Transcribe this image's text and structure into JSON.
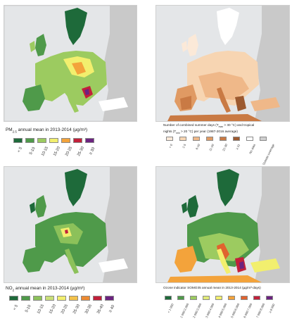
{
  "panels": [
    {
      "id": "pm25",
      "title_prefix": "PM",
      "title_sub": "2.5",
      "title_rest": " annual mean in 2013-2014 (µg/m³)",
      "legend": [
        {
          "label": "< 5",
          "color": "#1e6a3a"
        },
        {
          "label": "5-10",
          "color": "#4f9a4a"
        },
        {
          "label": "10-15",
          "color": "#9ccb60"
        },
        {
          "label": "15-20",
          "color": "#f2ef6e"
        },
        {
          "label": "20-25",
          "color": "#f3a33b"
        },
        {
          "label": "25-30",
          "color": "#c2203a"
        },
        {
          "label": "≥ 30",
          "color": "#6c2380"
        }
      ]
    },
    {
      "id": "tropical",
      "title_line1": "Number of combined summer days (T",
      "title_sub1": "max",
      "title_line1b": " > 30 °C) and tropical",
      "title_line2": "nights (T",
      "title_sub2": "min",
      "title_line2b": " > 20 °C) per year (1987-2016 average)",
      "legend": [
        {
          "label": "< 0",
          "color": "#fbe9d8"
        },
        {
          "label": "1-5",
          "color": "#f7d5b2"
        },
        {
          "label": "6-10",
          "color": "#efb889"
        },
        {
          "label": "11-20",
          "color": "#e09a63"
        },
        {
          "label": "21-30",
          "color": "#c97a44"
        },
        {
          "label": "≥ 31",
          "color": "#9c5a30"
        },
        {
          "label": "No data",
          "color": "#ffffff"
        },
        {
          "label": "Outside coverage",
          "color": "#cfcfcf"
        }
      ]
    },
    {
      "id": "no2",
      "title_prefix": "NO",
      "title_sub": "2",
      "title_rest": " annual mean in 2013-2014 (µg/m³)",
      "legend": [
        {
          "label": "< 5",
          "color": "#1e6a3a"
        },
        {
          "label": "5-10",
          "color": "#4f9a4a"
        },
        {
          "label": "10-15",
          "color": "#8cc15a"
        },
        {
          "label": "15-20",
          "color": "#c9df78"
        },
        {
          "label": "20-25",
          "color": "#f2ef6e"
        },
        {
          "label": "25-30",
          "color": "#f3c24b"
        },
        {
          "label": "30-35",
          "color": "#ec8a32"
        },
        {
          "label": "35-40",
          "color": "#c2203a"
        },
        {
          "label": "≥ 40",
          "color": "#6c2380"
        }
      ]
    },
    {
      "id": "ozone",
      "title": "Ozone indicator SOMO35 annual mean in 2013-2014 (µg/m³·days)",
      "legend": [
        {
          "label": "< 1 000",
          "color": "#1e6a3a"
        },
        {
          "label": "1 000-2 000",
          "color": "#4f9a4a"
        },
        {
          "label": "2 000-3 000",
          "color": "#9ccb60"
        },
        {
          "label": "3 000-4 000",
          "color": "#e1ea78"
        },
        {
          "label": "4 000-5 000",
          "color": "#f2ef6e"
        },
        {
          "label": "5 000-6 000",
          "color": "#f3a33b"
        },
        {
          "label": "6 000-7 000",
          "color": "#e0632f"
        },
        {
          "label": "7 000-8 000",
          "color": "#c2203a"
        },
        {
          "label": "≥ 8 000",
          "color": "#6c2380"
        }
      ]
    }
  ],
  "map_colors": {
    "sea": "#e4e6e8",
    "outside": "#c9c9c9",
    "nodata": "#ffffff",
    "border": "#8e8e8e"
  }
}
